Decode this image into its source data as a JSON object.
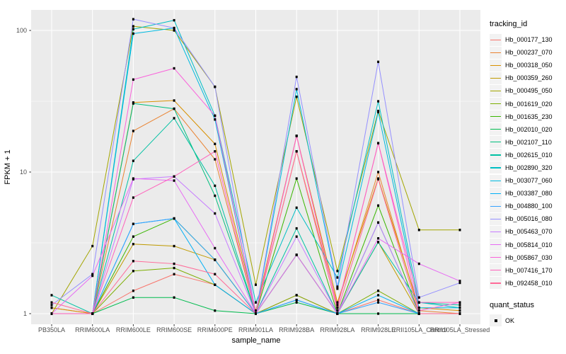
{
  "chart_data": {
    "type": "line",
    "title": "",
    "xlabel": "sample_name",
    "ylabel": "FPKM + 1",
    "y_scale": "log10",
    "y_ticks": [
      1,
      10,
      100
    ],
    "y_minor_ticks": [
      3.162,
      31.62
    ],
    "ylim_px_note": "log axis: value 1 at y=443, one decade = 200px",
    "panel_bg": "#EBEBEB",
    "grid_color": "#FFFFFF",
    "point_shape": "filled-square",
    "point_color": "#000000",
    "legend_title": "tracking_id",
    "legend_position": "right",
    "categories": [
      "PB350LA",
      "RRIM600LA",
      "RRIM600LE",
      "RRIM600SE",
      "RRIM600PE",
      "RRIM901LA",
      "RRIM928BA",
      "RRIM928LA",
      "RRIM928LE",
      "RRII105LA_Control",
      "RRII105LA_Stressed"
    ],
    "series": [
      {
        "name": "Hb_000177_130",
        "color": "#F8766D",
        "values": [
          1.1,
          1.0,
          1.45,
          1.9,
          1.6,
          1.0,
          1.35,
          1.0,
          1.25,
          1.0,
          1.0
        ]
      },
      {
        "name": "Hb_000237_070",
        "color": "#EA8331",
        "values": [
          1.0,
          1.0,
          19.5,
          28.0,
          12.3,
          1.0,
          14.0,
          1.15,
          10.0,
          1.05,
          1.0
        ]
      },
      {
        "name": "Hb_000318_050",
        "color": "#D89000",
        "values": [
          1.1,
          1.0,
          31.0,
          32.0,
          15.8,
          1.05,
          18.0,
          1.2,
          9.0,
          1.1,
          1.05
        ]
      },
      {
        "name": "Hb_000359_260",
        "color": "#C09B00",
        "values": [
          1.0,
          1.0,
          3.1,
          3.0,
          2.4,
          1.0,
          2.6,
          1.0,
          3.2,
          1.0,
          1.0
        ]
      },
      {
        "name": "Hb_000495_050",
        "color": "#A3A500",
        "values": [
          1.0,
          3.0,
          107.0,
          100.0,
          40.0,
          1.6,
          34.0,
          2.0,
          27.0,
          3.9,
          3.9
        ]
      },
      {
        "name": "Hb_001619_020",
        "color": "#7CAE00",
        "values": [
          1.0,
          1.0,
          2.0,
          2.1,
          1.6,
          1.0,
          1.35,
          1.0,
          1.45,
          1.0,
          1.0
        ]
      },
      {
        "name": "Hb_001635_230",
        "color": "#39B600",
        "values": [
          1.0,
          1.0,
          3.5,
          4.7,
          2.4,
          1.0,
          9.0,
          1.0,
          5.8,
          1.0,
          1.0
        ]
      },
      {
        "name": "Hb_002010_020",
        "color": "#00BB4E",
        "values": [
          1.0,
          1.0,
          1.3,
          1.3,
          1.05,
          1.0,
          1.2,
          1.0,
          1.0,
          1.0,
          1.0
        ]
      },
      {
        "name": "Hb_002107_110",
        "color": "#00BF7D",
        "values": [
          1.0,
          1.0,
          30.5,
          28.0,
          6.8,
          1.0,
          2.6,
          1.0,
          4.4,
          1.0,
          1.0
        ]
      },
      {
        "name": "Hb_002615_010",
        "color": "#00C1A3",
        "values": [
          1.35,
          1.0,
          12.0,
          24.0,
          8.0,
          1.0,
          4.0,
          1.0,
          3.2,
          1.2,
          1.15
        ]
      },
      {
        "name": "Hb_002890_320",
        "color": "#00BFC4",
        "values": [
          1.0,
          1.0,
          102.0,
          118.0,
          25.0,
          1.2,
          5.6,
          1.8,
          31.6,
          1.2,
          1.1
        ]
      },
      {
        "name": "Hb_003077_060",
        "color": "#00BAE0",
        "values": [
          1.0,
          1.0,
          95.0,
          104.0,
          23.5,
          1.0,
          38.5,
          1.5,
          26.5,
          1.1,
          1.1
        ]
      },
      {
        "name": "Hb_003387_080",
        "color": "#00B0F6",
        "values": [
          1.0,
          1.0,
          4.3,
          4.7,
          1.6,
          1.0,
          1.25,
          1.0,
          1.35,
          1.0,
          1.0
        ]
      },
      {
        "name": "Hb_004880_100",
        "color": "#35A2FF",
        "values": [
          1.0,
          1.0,
          4.3,
          4.7,
          2.4,
          1.0,
          1.25,
          1.0,
          1.2,
          1.0,
          1.0
        ]
      },
      {
        "name": "Hb_005016_080",
        "color": "#9590FF",
        "values": [
          1.15,
          1.9,
          120.0,
          104.0,
          40.0,
          1.0,
          47.0,
          1.55,
          60.0,
          1.3,
          1.65
        ]
      },
      {
        "name": "Hb_005463_070",
        "color": "#C77CFF",
        "values": [
          1.0,
          1.0,
          8.9,
          9.3,
          5.1,
          1.0,
          3.5,
          1.0,
          4.4,
          1.0,
          1.0
        ]
      },
      {
        "name": "Hb_005814_010",
        "color": "#E76BF3",
        "values": [
          1.0,
          1.85,
          9.0,
          8.7,
          2.9,
          1.0,
          2.6,
          1.0,
          3.4,
          2.25,
          1.7
        ]
      },
      {
        "name": "Hb_005867_030",
        "color": "#FA62DB",
        "values": [
          1.0,
          1.0,
          45.0,
          54.0,
          25.0,
          1.0,
          18.0,
          1.1,
          16.0,
          1.05,
          1.2
        ]
      },
      {
        "name": "Hb_007416_170",
        "color": "#FF62BC",
        "values": [
          1.0,
          1.0,
          6.6,
          9.3,
          14.0,
          1.0,
          18.0,
          1.1,
          16.0,
          1.2,
          1.2
        ]
      },
      {
        "name": "Hb_092458_010",
        "color": "#FF6A98",
        "values": [
          1.2,
          1.0,
          2.35,
          2.25,
          1.9,
          1.0,
          14.0,
          1.05,
          8.9,
          1.0,
          1.0
        ]
      }
    ],
    "quant_legend": {
      "title": "quant_status",
      "items": [
        {
          "label": "OK"
        }
      ]
    }
  }
}
